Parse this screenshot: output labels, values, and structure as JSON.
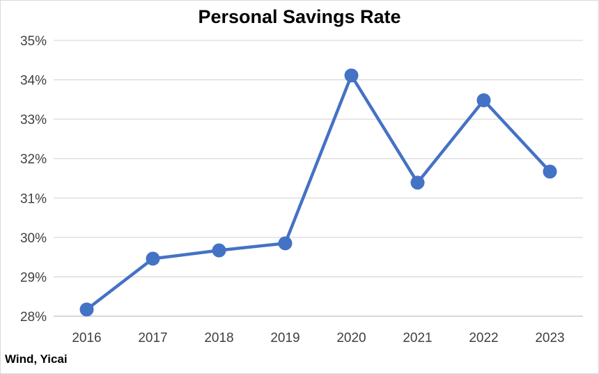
{
  "chart_data": {
    "type": "line",
    "title": "Personal Savings Rate",
    "xlabel": "",
    "ylabel": "",
    "categories": [
      "2016",
      "2017",
      "2018",
      "2019",
      "2020",
      "2021",
      "2022",
      "2023"
    ],
    "series": [
      {
        "values": [
          28.17,
          29.46,
          29.67,
          29.85,
          34.11,
          31.39,
          33.48,
          31.67
        ],
        "color": "#4472c4"
      }
    ],
    "ylim": [
      28,
      35
    ],
    "yticks": [
      28,
      29,
      30,
      31,
      32,
      33,
      34,
      35
    ],
    "ytick_suffix": "%",
    "grid": true,
    "legend": "none",
    "markers": true
  },
  "source": "Wind, Yicai",
  "colors": {
    "line": "#4472c4",
    "grid": "#d9d9d9",
    "axis": "#bfbfbf",
    "text": "#404040"
  }
}
